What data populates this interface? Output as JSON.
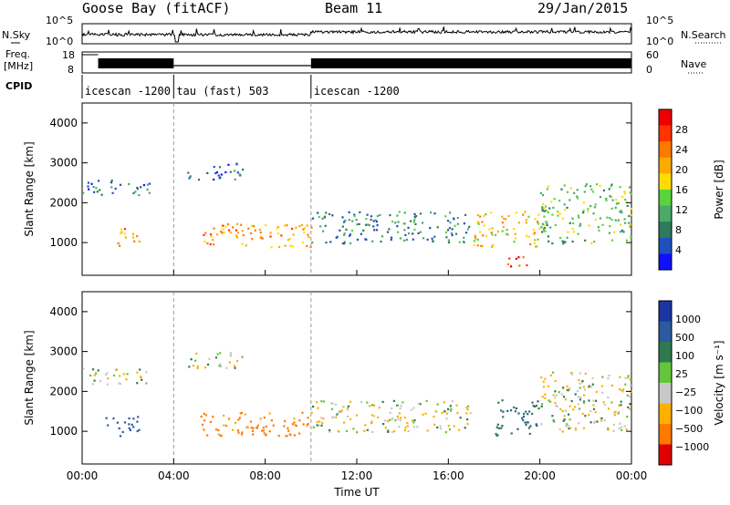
{
  "header": {
    "station": "Goose Bay (fitACF)",
    "beam": "Beam 11",
    "date": "29/Jan/2015"
  },
  "side_labels": {
    "nsky": "N.Sky",
    "nsearch": "N.Search",
    "nave": "Nave",
    "freq_line1": "Freq.",
    "freq_line2": "[MHz]",
    "cpid": "CPID"
  },
  "chart_data": [
    {
      "type": "line",
      "panel": "noise",
      "ytick_labels_left": [
        "10^5",
        "10^0"
      ],
      "ytick_labels_right": [
        "10^5",
        "10^0"
      ],
      "series": [
        {
          "name": "N.Sky",
          "style": "solid"
        },
        {
          "name": "N.Search",
          "style": "dotted"
        }
      ]
    },
    {
      "type": "line",
      "panel": "frequency",
      "left_axis": {
        "ticks": [
          8,
          18
        ]
      },
      "right_axis": {
        "ticks": [
          0,
          60
        ]
      },
      "segments": [
        {
          "start_hour": 0.0,
          "end_hour": 4.0,
          "freq_mhz": "≈10.5–11.5 (alternating)"
        },
        {
          "start_hour": 4.0,
          "end_hour": 10.0,
          "freq_mhz": 10.3
        },
        {
          "start_hour": 10.0,
          "end_hour": 24.0,
          "freq_mhz": "≈10.5–11.5 (alternating)"
        }
      ]
    },
    {
      "type": "table",
      "panel": "cpid",
      "entries": [
        {
          "label": "icescan -1200",
          "start_hour": 0.0
        },
        {
          "label": "tau (fast) 503",
          "start_hour": 4.0
        },
        {
          "label": "icescan -1200",
          "start_hour": 10.0
        }
      ]
    },
    {
      "type": "heatmap",
      "panel": "power",
      "ylabel": "Slant Range [km]",
      "yticks": [
        1000,
        2000,
        3000,
        4000
      ],
      "colorbar": {
        "label": "Power [dB]",
        "ticks": [
          4,
          8,
          12,
          16,
          20,
          24,
          28
        ],
        "colors": [
          "#1010ff",
          "#2050c0",
          "#2f7a5a",
          "#4ca96a",
          "#59d43a",
          "#ffdd00",
          "#ffaa00",
          "#ff7a00",
          "#ff3300",
          "#ee0000"
        ]
      },
      "echo_regions": [
        {
          "hours": [
            0.0,
            3.0
          ],
          "range_km": [
            2200,
            2600
          ],
          "power_db": 6
        },
        {
          "hours": [
            1.5,
            2.5
          ],
          "range_km": [
            900,
            1400
          ],
          "power_db": 22
        },
        {
          "hours": [
            4.5,
            7.0
          ],
          "range_km": [
            2600,
            3000
          ],
          "power_db": 6
        },
        {
          "hours": [
            5.0,
            10.0
          ],
          "range_km": [
            900,
            1500
          ],
          "power_db": 20
        },
        {
          "hours": [
            10.0,
            17.0
          ],
          "range_km": [
            1000,
            1800
          ],
          "power_db": 8
        },
        {
          "hours": [
            17.0,
            20.0
          ],
          "range_km": [
            900,
            1800
          ],
          "power_db": 18
        },
        {
          "hours": [
            18.5,
            19.5
          ],
          "range_km": [
            400,
            700
          ],
          "power_db": 26
        },
        {
          "hours": [
            20.0,
            24.0
          ],
          "range_km": [
            1000,
            2500
          ],
          "power_db": 12
        }
      ]
    },
    {
      "type": "heatmap",
      "panel": "velocity",
      "ylabel": "Slant Range [km]",
      "xlabel": "Time UT",
      "yticks": [
        1000,
        2000,
        3000,
        4000
      ],
      "xticks": [
        "00:00",
        "04:00",
        "08:00",
        "12:00",
        "16:00",
        "20:00",
        "00:00"
      ],
      "colorbar": {
        "label": "Velocity [m s⁻¹]",
        "ticks": [
          1000,
          500,
          100,
          25,
          -25,
          -100,
          -500,
          -1000
        ],
        "colors": [
          "#1a35a0",
          "#2d5a9e",
          "#2f7a4f",
          "#63c63a",
          "#c8c8c8",
          "#ffb000",
          "#ff7a00",
          "#e00000"
        ]
      },
      "echo_regions": [
        {
          "hours": [
            0.0,
            3.0
          ],
          "range_km": [
            2200,
            2600
          ],
          "velocity": 0
        },
        {
          "hours": [
            1.0,
            2.5
          ],
          "range_km": [
            900,
            1400
          ],
          "velocity": 500
        },
        {
          "hours": [
            4.5,
            7.0
          ],
          "range_km": [
            2600,
            3000
          ],
          "velocity": 0
        },
        {
          "hours": [
            5.0,
            10.0
          ],
          "range_km": [
            900,
            1500
          ],
          "velocity": -150
        },
        {
          "hours": [
            10.0,
            17.0
          ],
          "range_km": [
            1000,
            1800
          ],
          "velocity": 0
        },
        {
          "hours": [
            18.0,
            20.0
          ],
          "range_km": [
            900,
            1800
          ],
          "velocity": 300
        },
        {
          "hours": [
            20.0,
            24.0
          ],
          "range_km": [
            1000,
            2500
          ],
          "velocity": 0
        }
      ]
    }
  ]
}
